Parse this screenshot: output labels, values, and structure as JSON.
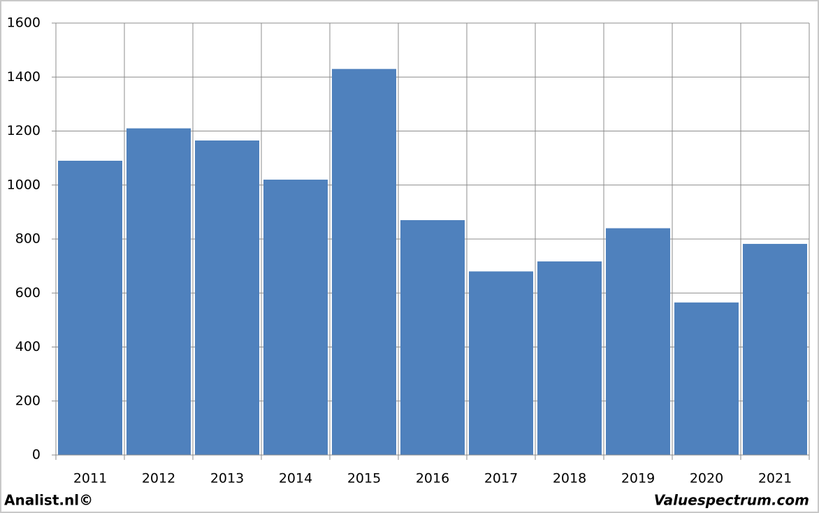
{
  "chart_data": {
    "type": "bar",
    "categories": [
      "2011",
      "2012",
      "2013",
      "2014",
      "2015",
      "2016",
      "2017",
      "2018",
      "2019",
      "2020",
      "2021"
    ],
    "values": [
      1090,
      1210,
      1165,
      1020,
      1430,
      870,
      680,
      717,
      840,
      565,
      782
    ],
    "color": "#4f81bd",
    "ylim": [
      0,
      1600
    ],
    "yticks": [
      0,
      200,
      400,
      600,
      800,
      1000,
      1200,
      1400,
      1600
    ],
    "grid": true
  },
  "footer": {
    "left": "Analist.nl©",
    "right": "Valuespectrum.com"
  }
}
